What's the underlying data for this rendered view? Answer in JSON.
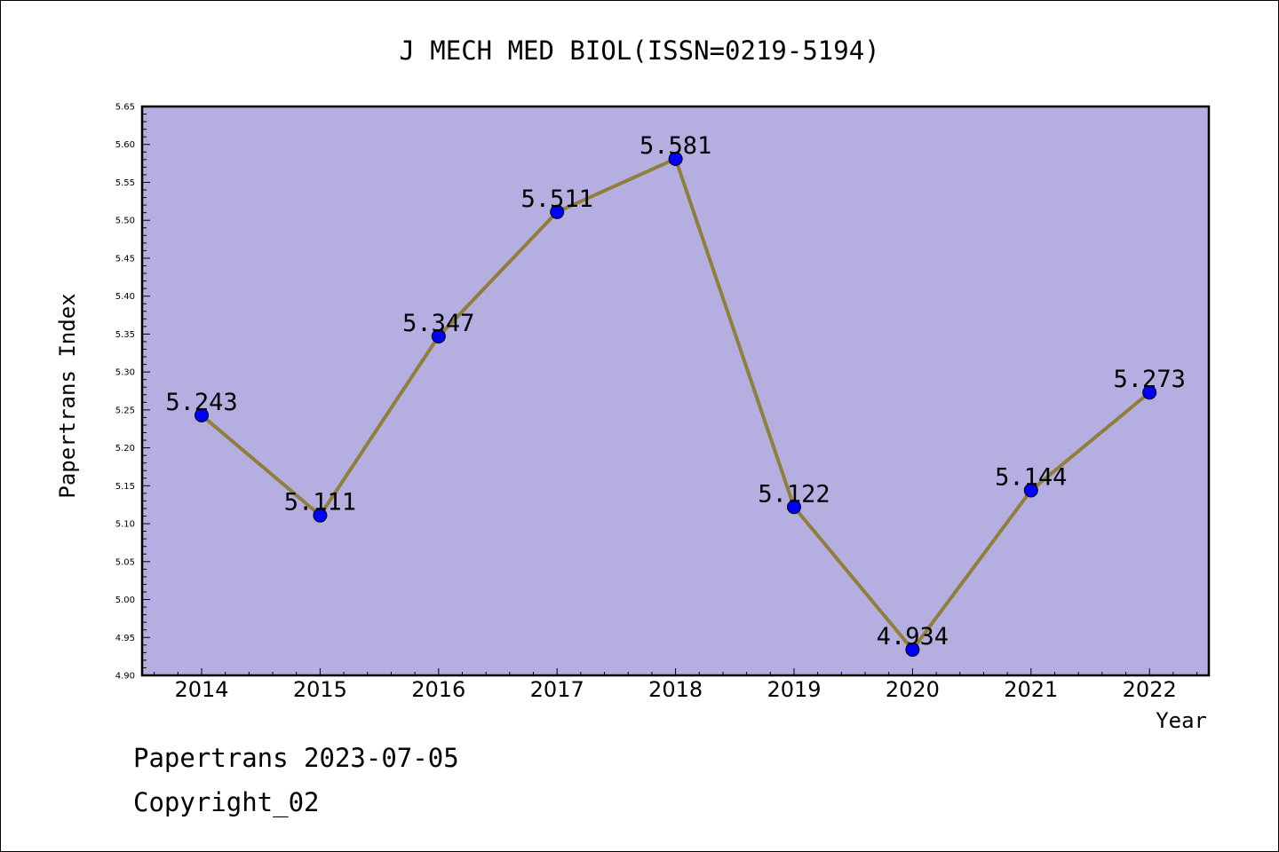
{
  "chart_data": {
    "type": "line",
    "title": "J MECH MED BIOL(ISSN=0219-5194)",
    "xlabel": "Year",
    "ylabel": "Papertrans Index",
    "categories": [
      "2014",
      "2015",
      "2016",
      "2017",
      "2018",
      "2019",
      "2020",
      "2021",
      "2022"
    ],
    "values": [
      5.243,
      5.111,
      5.347,
      5.511,
      5.581,
      5.122,
      4.934,
      5.144,
      5.273
    ],
    "data_labels": [
      "5.243",
      "5.111",
      "5.347",
      "5.511",
      "5.581",
      "5.122",
      "4.934",
      "5.144",
      "5.273"
    ],
    "ylim": [
      4.9,
      5.65
    ],
    "yticks": [
      "4.90",
      "4.95",
      "5.00",
      "5.05",
      "5.10",
      "5.15",
      "5.20",
      "5.25",
      "5.30",
      "5.35",
      "5.40",
      "5.45",
      "5.50",
      "5.55",
      "5.60",
      "5.65"
    ],
    "grid": false,
    "plot_background": "#b5aee1",
    "line_color": "#8f7f3a",
    "marker_color": "#0000ff"
  },
  "footer": {
    "line1": "Papertrans 2023-07-05",
    "line2": "Copyright_02"
  }
}
